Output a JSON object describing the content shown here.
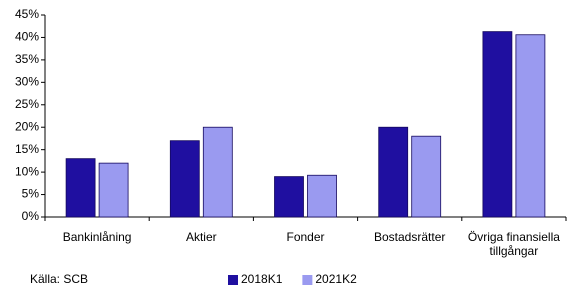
{
  "chart_data": {
    "type": "bar",
    "categories": [
      "Bankinlåning",
      "Aktier",
      "Fonder",
      "Bostadsrätter",
      "Övriga finansiella tillgångar"
    ],
    "series": [
      {
        "name": "2018K1",
        "color": "#1f0fa0",
        "values": [
          13.0,
          17.0,
          9.0,
          20.0,
          41.3
        ]
      },
      {
        "name": "2021K2",
        "color": "#9a9af0",
        "values": [
          12.0,
          20.0,
          9.3,
          18.0,
          40.6
        ]
      }
    ],
    "ylim": [
      0,
      45
    ],
    "yticks": [
      {
        "value": 0,
        "label": "0%"
      },
      {
        "value": 5,
        "label": "5%"
      },
      {
        "value": 10,
        "label": "10%"
      },
      {
        "value": 15,
        "label": "15%"
      },
      {
        "value": 20,
        "label": "20%"
      },
      {
        "value": 25,
        "label": "25%"
      },
      {
        "value": 30,
        "label": "30%"
      },
      {
        "value": 35,
        "label": "35%"
      },
      {
        "value": 40,
        "label": "40%"
      },
      {
        "value": 45,
        "label": "45%"
      }
    ],
    "grid": false,
    "legend": "bottom",
    "source": "Källa: SCB"
  }
}
